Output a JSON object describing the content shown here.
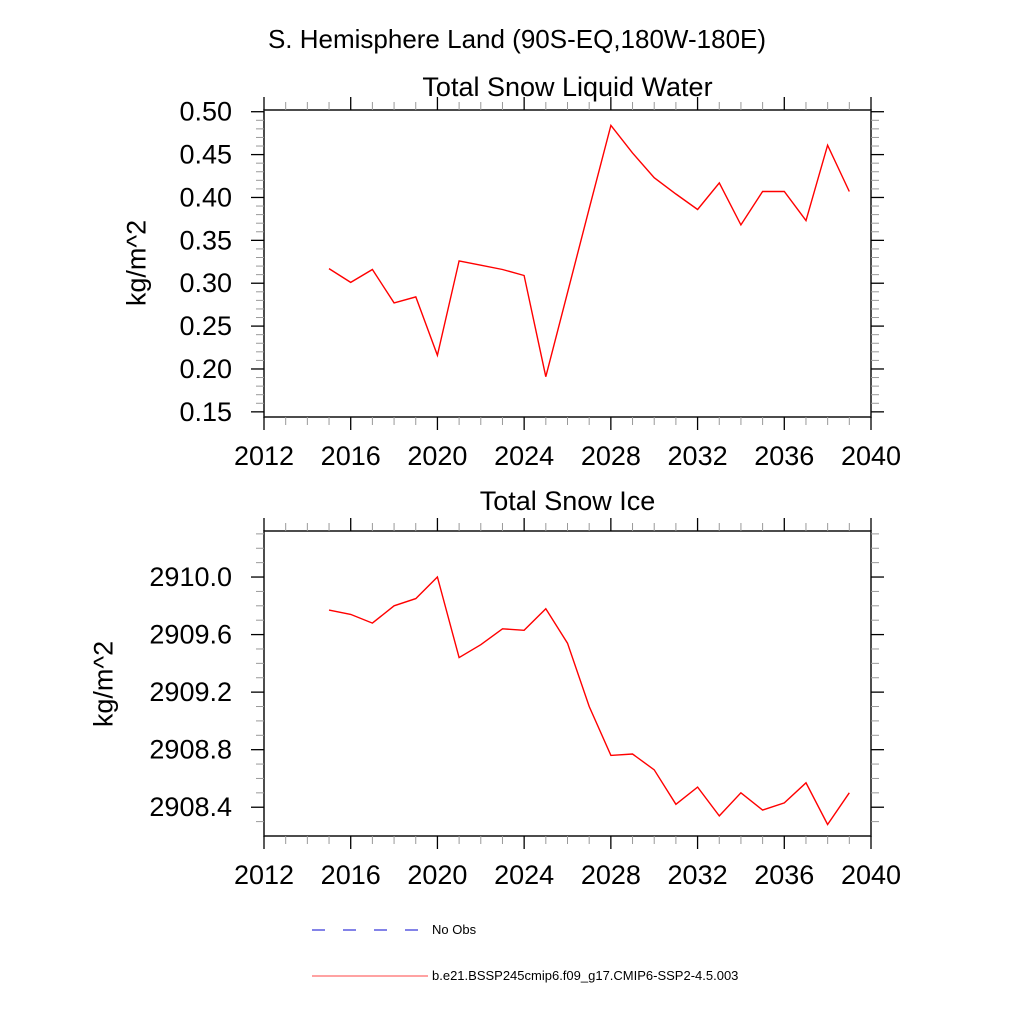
{
  "page_title": "S. Hemisphere Land (90S-EQ,180W-180E)",
  "colors": {
    "background": "#ffffff",
    "axis": "#111111",
    "major_tick": "#000000",
    "minor_tick": "#999999",
    "series_red": "#ff0000",
    "legend_red": "#ff6a6a",
    "no_obs_blue": "#5a5ae0"
  },
  "legend": {
    "items": [
      {
        "label": "No Obs",
        "style": "dashed",
        "color": "#5a5ae0"
      },
      {
        "label": "b.e21.BSSP245cmip6.f09_g17.CMIP6-SSP2-4.5.003",
        "style": "solid",
        "color": "#ff6a6a"
      }
    ]
  },
  "chart_data": [
    {
      "type": "line",
      "title": "Total Snow Liquid Water",
      "xlabel": "",
      "ylabel": "kg/m^2",
      "x": [
        2015,
        2016,
        2017,
        2018,
        2019,
        2020,
        2021,
        2022,
        2023,
        2024,
        2025,
        2026,
        2027,
        2028,
        2029,
        2030,
        2031,
        2032,
        2033,
        2034,
        2035,
        2036,
        2037,
        2038,
        2039
      ],
      "series": [
        {
          "name": "b.e21.BSSP245cmip6.f09_g17.CMIP6-SSP2-4.5.003",
          "color": "#ff0000",
          "values": [
            0.317,
            0.301,
            0.316,
            0.277,
            0.284,
            0.216,
            0.326,
            0.321,
            0.316,
            0.309,
            0.191,
            0.289,
            0.387,
            0.484,
            0.452,
            0.423,
            0.404,
            0.386,
            0.417,
            0.368,
            0.407,
            0.407,
            0.373,
            0.461,
            0.407
          ]
        }
      ],
      "xlim": [
        2012,
        2040
      ],
      "ylim": [
        0.144,
        0.502
      ],
      "xticks_major": [
        2012,
        2016,
        2020,
        2024,
        2028,
        2032,
        2036,
        2040
      ],
      "xtick_labels": [
        "2012",
        "2016",
        "2020",
        "2024",
        "2028",
        "2032",
        "2036",
        "2040"
      ],
      "xtick_minor_step": 1,
      "yticks_major": [
        0.15,
        0.2,
        0.25,
        0.3,
        0.35,
        0.4,
        0.45,
        0.5
      ],
      "ytick_labels": [
        "0.15",
        "0.20",
        "0.25",
        "0.30",
        "0.35",
        "0.40",
        "0.45",
        "0.50"
      ],
      "ytick_minor_step": 0.01,
      "ytick_minor_per_major": 5,
      "grid": false,
      "legend_position": "below-figure"
    },
    {
      "type": "line",
      "title": "Total Snow Ice",
      "xlabel": "",
      "ylabel": "kg/m^2",
      "x": [
        2015,
        2016,
        2017,
        2018,
        2019,
        2020,
        2021,
        2022,
        2023,
        2024,
        2025,
        2026,
        2027,
        2028,
        2029,
        2030,
        2031,
        2032,
        2033,
        2034,
        2035,
        2036,
        2037,
        2038,
        2039
      ],
      "series": [
        {
          "name": "b.e21.BSSP245cmip6.f09_g17.CMIP6-SSP2-4.5.003",
          "color": "#ff0000",
          "values": [
            2909.77,
            2909.74,
            2909.68,
            2909.8,
            2909.85,
            2910.0,
            2909.44,
            2909.53,
            2909.64,
            2909.63,
            2909.78,
            2909.54,
            2909.1,
            2908.76,
            2908.77,
            2908.66,
            2908.42,
            2908.54,
            2908.34,
            2908.5,
            2908.38,
            2908.43,
            2908.57,
            2908.28,
            2908.5
          ]
        }
      ],
      "xlim": [
        2012,
        2040
      ],
      "ylim": [
        2908.2,
        2910.32
      ],
      "xticks_major": [
        2012,
        2016,
        2020,
        2024,
        2028,
        2032,
        2036,
        2040
      ],
      "xtick_labels": [
        "2012",
        "2016",
        "2020",
        "2024",
        "2028",
        "2032",
        "2036",
        "2040"
      ],
      "xtick_minor_step": 1,
      "yticks_major": [
        2908.4,
        2908.8,
        2909.2,
        2909.6,
        2910.0
      ],
      "ytick_labels": [
        "2908.4",
        "2908.8",
        "2909.2",
        "2909.6",
        "2910.0"
      ],
      "ytick_minor_step": 0.1,
      "ytick_minor_per_major": 4,
      "grid": false,
      "legend_position": "below-figure"
    }
  ]
}
